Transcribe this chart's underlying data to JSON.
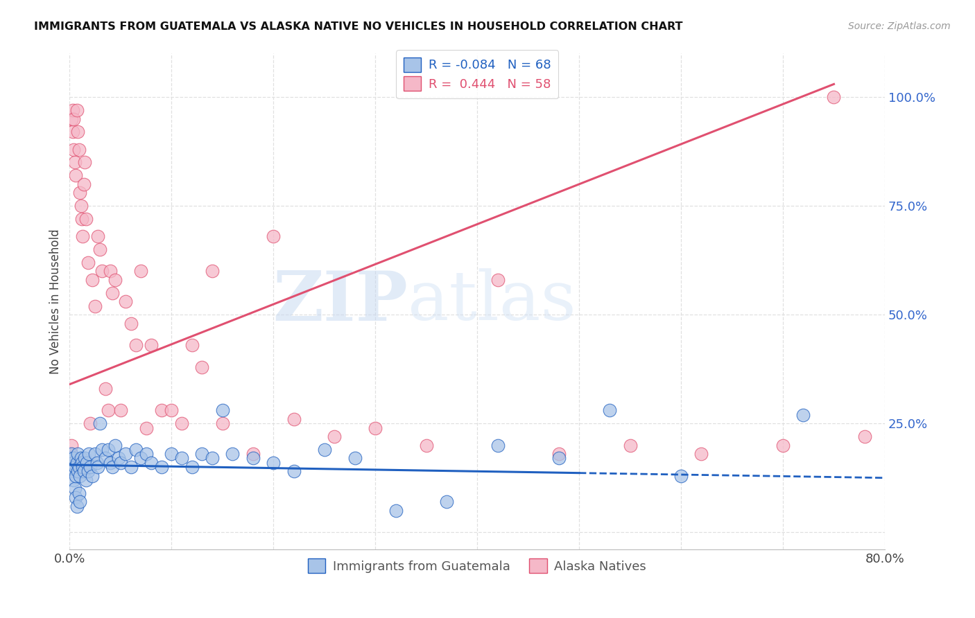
{
  "title": "IMMIGRANTS FROM GUATEMALA VS ALASKA NATIVE NO VEHICLES IN HOUSEHOLD CORRELATION CHART",
  "source": "Source: ZipAtlas.com",
  "ylabel": "No Vehicles in Household",
  "xlim": [
    0.0,
    0.8
  ],
  "ylim": [
    -0.04,
    1.1
  ],
  "ytick_positions": [
    0.0,
    0.25,
    0.5,
    0.75,
    1.0
  ],
  "ytick_labels": [
    "",
    "25.0%",
    "50.0%",
    "75.0%",
    "100.0%"
  ],
  "blue_R": -0.084,
  "blue_N": 68,
  "pink_R": 0.444,
  "pink_N": 58,
  "blue_color": "#a8c4e8",
  "pink_color": "#f5b8c8",
  "blue_line_color": "#2060c0",
  "pink_line_color": "#e05070",
  "blue_line_solid_end": 0.5,
  "blue_line_y0": 0.155,
  "blue_line_y1": 0.125,
  "pink_line_y0": 0.34,
  "pink_line_y1": 1.03,
  "blue_scatter_x": [
    0.001,
    0.002,
    0.002,
    0.003,
    0.003,
    0.004,
    0.004,
    0.005,
    0.005,
    0.006,
    0.006,
    0.007,
    0.007,
    0.008,
    0.008,
    0.009,
    0.009,
    0.01,
    0.01,
    0.011,
    0.012,
    0.013,
    0.014,
    0.015,
    0.016,
    0.017,
    0.018,
    0.019,
    0.02,
    0.022,
    0.025,
    0.027,
    0.028,
    0.03,
    0.032,
    0.035,
    0.038,
    0.04,
    0.042,
    0.045,
    0.048,
    0.05,
    0.055,
    0.06,
    0.065,
    0.07,
    0.075,
    0.08,
    0.09,
    0.1,
    0.11,
    0.12,
    0.13,
    0.14,
    0.15,
    0.16,
    0.18,
    0.2,
    0.22,
    0.25,
    0.28,
    0.32,
    0.37,
    0.42,
    0.48,
    0.53,
    0.6,
    0.72
  ],
  "blue_scatter_y": [
    0.17,
    0.15,
    0.18,
    0.14,
    0.16,
    0.12,
    0.17,
    0.1,
    0.15,
    0.08,
    0.13,
    0.16,
    0.06,
    0.14,
    0.18,
    0.09,
    0.15,
    0.07,
    0.13,
    0.17,
    0.16,
    0.15,
    0.14,
    0.17,
    0.12,
    0.16,
    0.14,
    0.18,
    0.15,
    0.13,
    0.18,
    0.16,
    0.15,
    0.25,
    0.19,
    0.17,
    0.19,
    0.16,
    0.15,
    0.2,
    0.17,
    0.16,
    0.18,
    0.15,
    0.19,
    0.17,
    0.18,
    0.16,
    0.15,
    0.18,
    0.17,
    0.15,
    0.18,
    0.17,
    0.28,
    0.18,
    0.17,
    0.16,
    0.14,
    0.19,
    0.17,
    0.05,
    0.07,
    0.2,
    0.17,
    0.28,
    0.13,
    0.27
  ],
  "pink_scatter_x": [
    0.001,
    0.002,
    0.002,
    0.003,
    0.003,
    0.004,
    0.004,
    0.005,
    0.006,
    0.007,
    0.008,
    0.009,
    0.01,
    0.011,
    0.012,
    0.013,
    0.014,
    0.015,
    0.016,
    0.018,
    0.02,
    0.022,
    0.025,
    0.028,
    0.03,
    0.032,
    0.035,
    0.038,
    0.04,
    0.042,
    0.045,
    0.05,
    0.055,
    0.06,
    0.065,
    0.07,
    0.075,
    0.08,
    0.09,
    0.1,
    0.11,
    0.12,
    0.13,
    0.14,
    0.15,
    0.18,
    0.2,
    0.22,
    0.26,
    0.3,
    0.35,
    0.42,
    0.48,
    0.55,
    0.62,
    0.7,
    0.75,
    0.78
  ],
  "pink_scatter_y": [
    0.18,
    0.2,
    0.95,
    0.92,
    0.97,
    0.88,
    0.95,
    0.85,
    0.82,
    0.97,
    0.92,
    0.88,
    0.78,
    0.75,
    0.72,
    0.68,
    0.8,
    0.85,
    0.72,
    0.62,
    0.25,
    0.58,
    0.52,
    0.68,
    0.65,
    0.6,
    0.33,
    0.28,
    0.6,
    0.55,
    0.58,
    0.28,
    0.53,
    0.48,
    0.43,
    0.6,
    0.24,
    0.43,
    0.28,
    0.28,
    0.25,
    0.43,
    0.38,
    0.6,
    0.25,
    0.18,
    0.68,
    0.26,
    0.22,
    0.24,
    0.2,
    0.58,
    0.18,
    0.2,
    0.18,
    0.2,
    1.0,
    0.22
  ],
  "watermark_zip": "ZIP",
  "watermark_atlas": "atlas",
  "grid_color": "#e0e0e0",
  "bg_color": "#ffffff"
}
